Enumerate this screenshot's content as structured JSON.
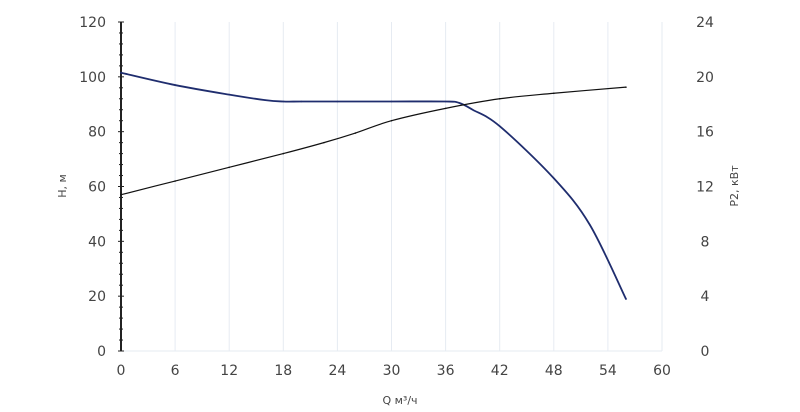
{
  "chart_data": {
    "type": "line",
    "x_axis": {
      "label": "Q м³/ч",
      "range": [
        0,
        60
      ],
      "ticks": [
        0,
        6,
        12,
        18,
        24,
        30,
        36,
        42,
        48,
        54,
        60
      ],
      "tick_labels": [
        "0",
        "6",
        "12",
        "18",
        "24",
        "30",
        "36",
        "42",
        "48",
        "54",
        "60"
      ]
    },
    "y_left_axis": {
      "label": "H, м",
      "range": [
        0,
        120
      ],
      "ticks": [
        0,
        20,
        40,
        60,
        80,
        100,
        120
      ],
      "tick_labels": [
        "0",
        "20",
        "40",
        "60",
        "80",
        "100",
        "120"
      ]
    },
    "y_right_axis": {
      "label": "P2, кВт",
      "range": [
        0,
        24
      ],
      "ticks": [
        0,
        4,
        8,
        12,
        16,
        20,
        24
      ],
      "tick_labels": [
        "0",
        "4",
        "8",
        "12",
        "16",
        "20",
        "24"
      ]
    },
    "grid": "vertical",
    "legend": "none",
    "series": [
      {
        "axis": "left",
        "color": "#1f2d6e",
        "x": [
          0,
          6,
          12,
          16,
          18,
          20,
          24,
          30,
          36,
          37.5,
          39,
          42,
          48,
          52,
          56
        ],
        "y": [
          101.5,
          97,
          93.5,
          91.5,
          91,
          91,
          91,
          91,
          91,
          90.5,
          88,
          82,
          63,
          46,
          19
        ]
      },
      {
        "axis": "right",
        "color": "#111111",
        "x": [
          0,
          6,
          12,
          18,
          22.5,
          26,
          30,
          36,
          42,
          48,
          56
        ],
        "y": [
          11.4,
          12.4,
          13.4,
          14.4,
          15.2,
          15.9,
          16.8,
          17.7,
          18.4,
          18.8,
          19.25
        ]
      }
    ],
    "colors": {
      "grid": "#e6ebf2",
      "axis_line": "#222222",
      "left_axis_ticks": "#222222"
    }
  }
}
